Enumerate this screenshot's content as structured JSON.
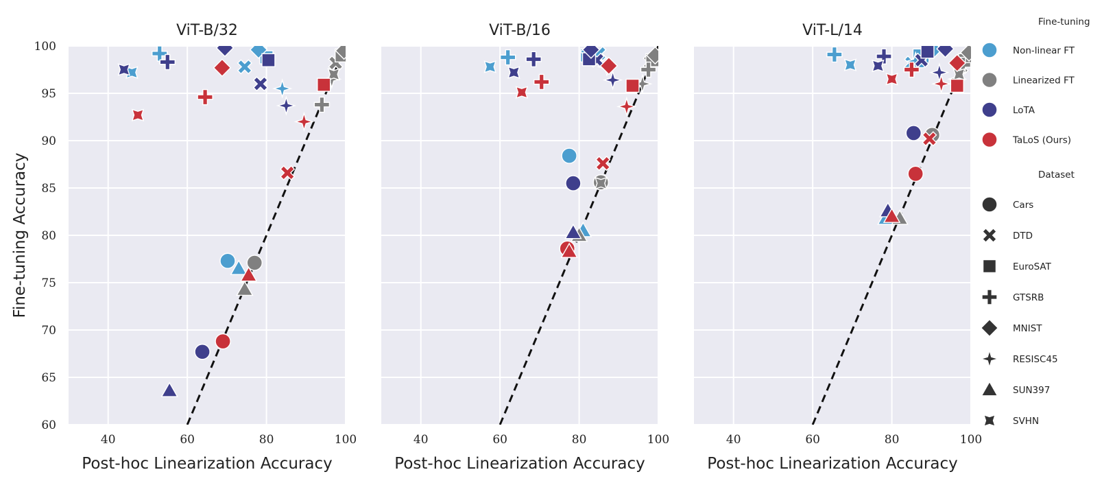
{
  "chart_data": {
    "type": "scatter",
    "xlabel": "Post-hoc Linearization Accuracy",
    "ylabel": "Fine-tuning Accuracy",
    "xlim": [
      30,
      100
    ],
    "ylim": [
      60,
      100
    ],
    "xticks": [
      "40",
      "60",
      "80",
      "100"
    ],
    "yticks": [
      "60",
      "65",
      "70",
      "75",
      "80",
      "85",
      "90",
      "95",
      "100"
    ],
    "grid": true,
    "reference_line": {
      "style": "dashed",
      "x1": 60,
      "y1": 60,
      "x2": 100,
      "y2": 100
    },
    "legend": {
      "position": "right",
      "hue_title": "Fine-tuning",
      "methods": [
        {
          "name": "Non-linear FT",
          "color": "#4C9ECF"
        },
        {
          "name": "Linearized FT",
          "color": "#808080"
        },
        {
          "name": "LoTA",
          "color": "#3F3F8C"
        },
        {
          "name": "TaLoS (Ours)",
          "color": "#C8323A"
        }
      ],
      "style_title": "Dataset",
      "datasets": [
        {
          "name": "Cars",
          "marker": "circle"
        },
        {
          "name": "DTD",
          "marker": "x"
        },
        {
          "name": "EuroSAT",
          "marker": "square"
        },
        {
          "name": "GTSRB",
          "marker": "plus"
        },
        {
          "name": "MNIST",
          "marker": "diamond"
        },
        {
          "name": "RESISC45",
          "marker": "star4"
        },
        {
          "name": "SUN397",
          "marker": "triangle"
        },
        {
          "name": "SVHN",
          "marker": "bowtie"
        }
      ]
    },
    "panels": [
      {
        "title": "ViT-B/32",
        "series": [
          {
            "name": "Non-linear FT",
            "points": [
              {
                "dataset": "Cars",
                "x": 70.2,
                "y": 77.3
              },
              {
                "dataset": "DTD",
                "x": 74.5,
                "y": 97.8
              },
              {
                "dataset": "EuroSAT",
                "x": 80.0,
                "y": 98.8
              },
              {
                "dataset": "GTSRB",
                "x": 53.0,
                "y": 99.2
              },
              {
                "dataset": "MNIST",
                "x": 78.0,
                "y": 99.6
              },
              {
                "dataset": "RESISC45",
                "x": 84.0,
                "y": 95.5
              },
              {
                "dataset": "SUN397",
                "x": 73.0,
                "y": 76.5
              },
              {
                "dataset": "SVHN",
                "x": 46.0,
                "y": 97.2
              }
            ]
          },
          {
            "name": "Linearized FT",
            "points": [
              {
                "dataset": "Cars",
                "x": 77.0,
                "y": 77.1
              },
              {
                "dataset": "DTD",
                "x": 97.5,
                "y": 98.2
              },
              {
                "dataset": "EuroSAT",
                "x": 99.0,
                "y": 99.0
              },
              {
                "dataset": "GTSRB",
                "x": 94.0,
                "y": 93.8
              },
              {
                "dataset": "MNIST",
                "x": 99.6,
                "y": 99.5
              },
              {
                "dataset": "RESISC45",
                "x": 96.5,
                "y": 96.5
              },
              {
                "dataset": "SUN397",
                "x": 74.5,
                "y": 74.3
              },
              {
                "dataset": "SVHN",
                "x": 97.0,
                "y": 97.0
              }
            ]
          },
          {
            "name": "LoTA",
            "points": [
              {
                "dataset": "Cars",
                "x": 63.8,
                "y": 67.7
              },
              {
                "dataset": "DTD",
                "x": 78.5,
                "y": 96.0
              },
              {
                "dataset": "EuroSAT",
                "x": 80.5,
                "y": 98.5
              },
              {
                "dataset": "GTSRB",
                "x": 55.0,
                "y": 98.3
              },
              {
                "dataset": "MNIST",
                "x": 69.5,
                "y": 99.8
              },
              {
                "dataset": "RESISC45",
                "x": 85.0,
                "y": 93.7
              },
              {
                "dataset": "SUN397",
                "x": 55.5,
                "y": 63.6
              },
              {
                "dataset": "SVHN",
                "x": 44.0,
                "y": 97.5
              }
            ]
          },
          {
            "name": "TaLoS (Ours)",
            "points": [
              {
                "dataset": "Cars",
                "x": 69.0,
                "y": 68.8
              },
              {
                "dataset": "DTD",
                "x": 85.3,
                "y": 86.6
              },
              {
                "dataset": "EuroSAT",
                "x": 94.5,
                "y": 95.9
              },
              {
                "dataset": "GTSRB",
                "x": 64.5,
                "y": 94.6
              },
              {
                "dataset": "MNIST",
                "x": 68.8,
                "y": 97.7
              },
              {
                "dataset": "RESISC45",
                "x": 89.5,
                "y": 92.0
              },
              {
                "dataset": "SUN397",
                "x": 75.5,
                "y": 75.8
              },
              {
                "dataset": "SVHN",
                "x": 47.5,
                "y": 92.7
              }
            ]
          }
        ]
      },
      {
        "title": "ViT-B/16",
        "series": [
          {
            "name": "Non-linear FT",
            "points": [
              {
                "dataset": "Cars",
                "x": 77.5,
                "y": 88.4
              },
              {
                "dataset": "DTD",
                "x": 85.0,
                "y": 99.2
              },
              {
                "dataset": "EuroSAT",
                "x": 82.0,
                "y": 99.0
              },
              {
                "dataset": "GTSRB",
                "x": 62.0,
                "y": 98.8
              },
              {
                "dataset": "MNIST",
                "x": 82.5,
                "y": 99.4
              },
              {
                "dataset": "RESISC45",
                "x": 87.0,
                "y": 97.8
              },
              {
                "dataset": "SUN397",
                "x": 81.0,
                "y": 80.5
              },
              {
                "dataset": "SVHN",
                "x": 57.5,
                "y": 97.8
              }
            ]
          },
          {
            "name": "Linearized FT",
            "points": [
              {
                "dataset": "Cars",
                "x": 85.5,
                "y": 85.6
              },
              {
                "dataset": "DTD",
                "x": 98.0,
                "y": 98.3
              },
              {
                "dataset": "EuroSAT",
                "x": 98.5,
                "y": 98.5
              },
              {
                "dataset": "GTSRB",
                "x": 97.5,
                "y": 97.5
              },
              {
                "dataset": "MNIST",
                "x": 99.2,
                "y": 99.0
              },
              {
                "dataset": "RESISC45",
                "x": 96.0,
                "y": 96.0
              },
              {
                "dataset": "SUN397",
                "x": 80.0,
                "y": 80.0
              },
              {
                "dataset": "SVHN",
                "x": 85.5,
                "y": 85.5
              }
            ]
          },
          {
            "name": "LoTA",
            "points": [
              {
                "dataset": "Cars",
                "x": 78.5,
                "y": 85.5
              },
              {
                "dataset": "DTD",
                "x": 84.5,
                "y": 98.5
              },
              {
                "dataset": "EuroSAT",
                "x": 82.5,
                "y": 98.6
              },
              {
                "dataset": "GTSRB",
                "x": 68.5,
                "y": 98.6
              },
              {
                "dataset": "MNIST",
                "x": 83.0,
                "y": 99.6
              },
              {
                "dataset": "RESISC45",
                "x": 88.5,
                "y": 96.4
              },
              {
                "dataset": "SUN397",
                "x": 78.5,
                "y": 80.3
              },
              {
                "dataset": "SVHN",
                "x": 63.5,
                "y": 97.2
              }
            ]
          },
          {
            "name": "TaLoS (Ours)",
            "points": [
              {
                "dataset": "Cars",
                "x": 77.0,
                "y": 78.6
              },
              {
                "dataset": "DTD",
                "x": 86.0,
                "y": 87.6
              },
              {
                "dataset": "EuroSAT",
                "x": 93.5,
                "y": 95.8
              },
              {
                "dataset": "GTSRB",
                "x": 70.5,
                "y": 96.2
              },
              {
                "dataset": "MNIST",
                "x": 87.5,
                "y": 97.9
              },
              {
                "dataset": "RESISC45",
                "x": 92.0,
                "y": 93.6
              },
              {
                "dataset": "SUN397",
                "x": 77.5,
                "y": 78.3
              },
              {
                "dataset": "SVHN",
                "x": 65.5,
                "y": 95.1
              }
            ]
          }
        ]
      },
      {
        "title": "ViT-L/14",
        "series": [
          {
            "name": "Non-linear FT",
            "points": [
              {
                "dataset": "Cars",
                "x": 87.5,
                "y": 98.5
              },
              {
                "dataset": "DTD",
                "x": 85.0,
                "y": 98.2
              },
              {
                "dataset": "EuroSAT",
                "x": 87.0,
                "y": 99.0
              },
              {
                "dataset": "GTSRB",
                "x": 65.5,
                "y": 99.1
              },
              {
                "dataset": "MNIST",
                "x": 90.5,
                "y": 99.6
              },
              {
                "dataset": "RESISC45",
                "x": 86.0,
                "y": 98.4
              },
              {
                "dataset": "SUN397",
                "x": 78.5,
                "y": 81.8
              },
              {
                "dataset": "SVHN",
                "x": 69.5,
                "y": 98.0
              }
            ]
          },
          {
            "name": "Linearized FT",
            "points": [
              {
                "dataset": "Cars",
                "x": 90.2,
                "y": 90.6
              },
              {
                "dataset": "DTD",
                "x": 97.5,
                "y": 97.8
              },
              {
                "dataset": "EuroSAT",
                "x": 98.5,
                "y": 98.5
              },
              {
                "dataset": "GTSRB",
                "x": 98.0,
                "y": 98.0
              },
              {
                "dataset": "MNIST",
                "x": 99.5,
                "y": 99.3
              },
              {
                "dataset": "RESISC45",
                "x": 96.5,
                "y": 96.5
              },
              {
                "dataset": "SUN397",
                "x": 82.0,
                "y": 81.8
              },
              {
                "dataset": "SVHN",
                "x": 97.0,
                "y": 97.0
              }
            ]
          },
          {
            "name": "LoTA",
            "points": [
              {
                "dataset": "Cars",
                "x": 85.5,
                "y": 90.8
              },
              {
                "dataset": "DTD",
                "x": 87.5,
                "y": 98.5
              },
              {
                "dataset": "EuroSAT",
                "x": 89.0,
                "y": 99.4
              },
              {
                "dataset": "GTSRB",
                "x": 78.0,
                "y": 98.9
              },
              {
                "dataset": "MNIST",
                "x": 93.5,
                "y": 99.7
              },
              {
                "dataset": "RESISC45",
                "x": 92.0,
                "y": 97.2
              },
              {
                "dataset": "SUN397",
                "x": 79.0,
                "y": 82.6
              },
              {
                "dataset": "SVHN",
                "x": 76.5,
                "y": 97.9
              }
            ]
          },
          {
            "name": "TaLoS (Ours)",
            "points": [
              {
                "dataset": "Cars",
                "x": 86.0,
                "y": 86.5
              },
              {
                "dataset": "DTD",
                "x": 89.5,
                "y": 90.2
              },
              {
                "dataset": "EuroSAT",
                "x": 96.5,
                "y": 95.8
              },
              {
                "dataset": "GTSRB",
                "x": 85.0,
                "y": 97.5
              },
              {
                "dataset": "MNIST",
                "x": 96.5,
                "y": 98.2
              },
              {
                "dataset": "RESISC45",
                "x": 92.5,
                "y": 96.0
              },
              {
                "dataset": "SUN397",
                "x": 80.0,
                "y": 82.0
              },
              {
                "dataset": "SVHN",
                "x": 80.0,
                "y": 96.5
              }
            ]
          }
        ]
      }
    ]
  }
}
